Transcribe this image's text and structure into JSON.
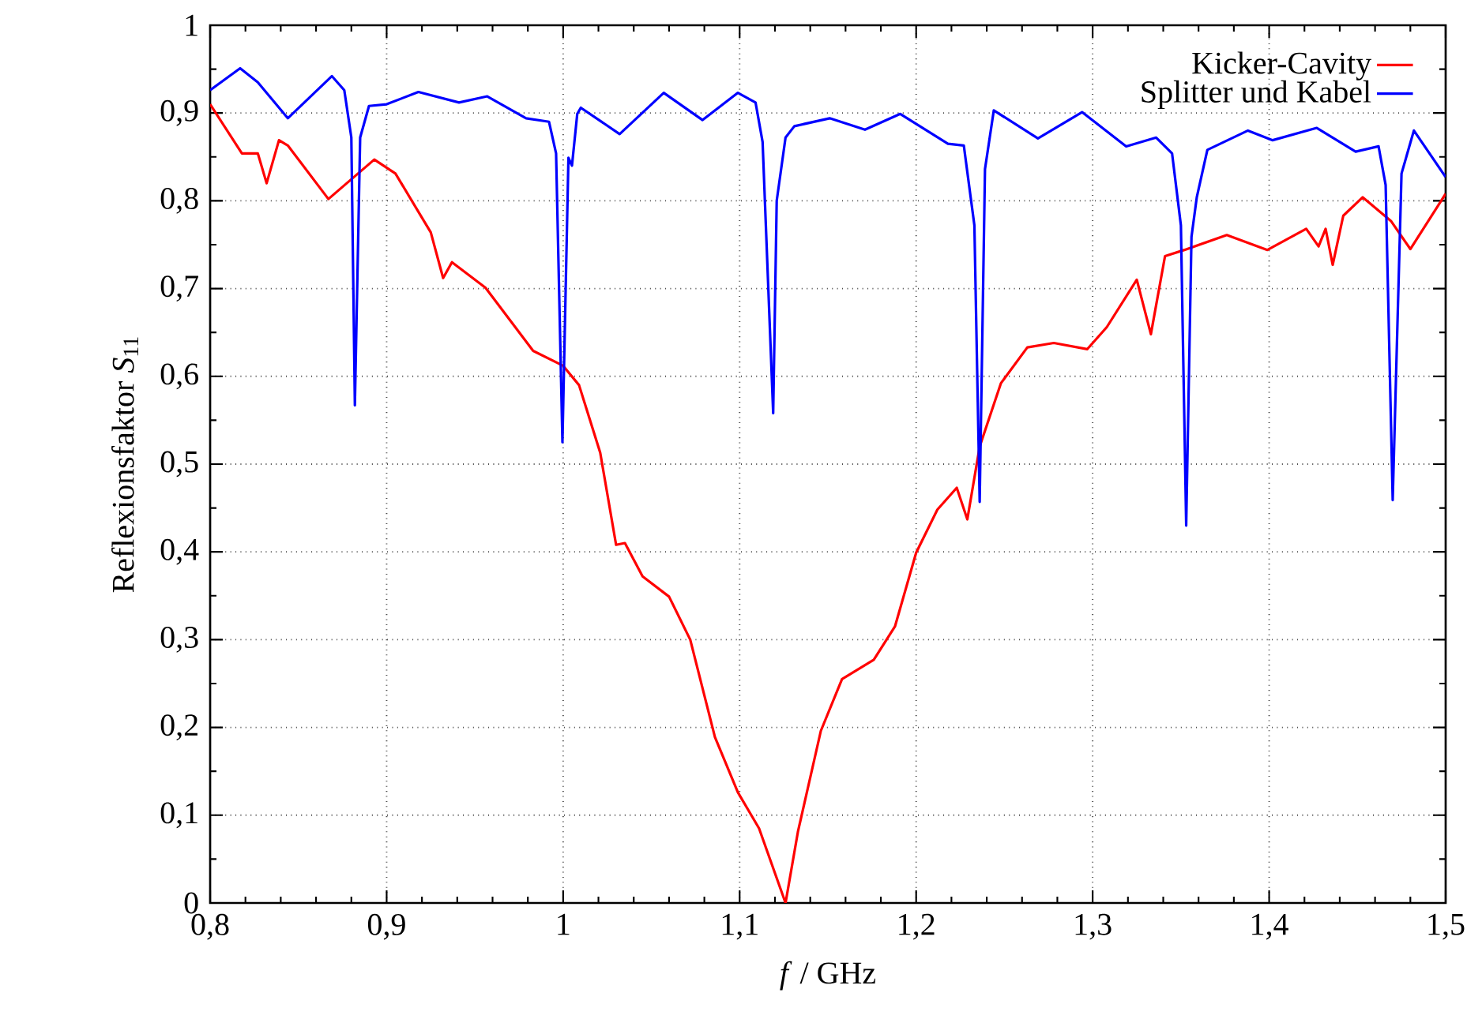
{
  "chart_data": {
    "type": "line",
    "xlabel": "*f* / GHz",
    "ylabel": "Reflexionsfaktor *S*$_{11}$",
    "xlim": [
      0.8,
      1.5
    ],
    "ylim": [
      0,
      1
    ],
    "xticks": [
      {
        "value": 0.8,
        "label": "0,8"
      },
      {
        "value": 0.9,
        "label": "0,9"
      },
      1,
      {
        "value": 1.1,
        "label": "1,1"
      },
      {
        "value": 1.2,
        "label": "1,2"
      },
      {
        "value": 1.3,
        "label": "1,3"
      },
      {
        "value": 1.4,
        "label": "1,4"
      },
      {
        "value": 1.5,
        "label": "1,5"
      }
    ],
    "yticks": [
      0,
      {
        "value": 0.1,
        "label": "0,1"
      },
      {
        "value": 0.2,
        "label": "0,2"
      },
      {
        "value": 0.3,
        "label": "0,3"
      },
      {
        "value": 0.4,
        "label": "0,4"
      },
      {
        "value": 0.5,
        "label": "0,5"
      },
      {
        "value": 0.6,
        "label": "0,6"
      },
      {
        "value": 0.7,
        "label": "0,7"
      },
      {
        "value": 0.8,
        "label": "0,8"
      },
      {
        "value": 0.9,
        "label": "0,9"
      },
      1
    ],
    "grid": true,
    "legend": "top right",
    "line_style": "solid",
    "series": [
      {
        "name": "Kicker-Cavity",
        "color": "#ff0000",
        "x": [
          0.8,
          0.818,
          0.827,
          0.832,
          0.839,
          0.844,
          0.867,
          0.893,
          0.905,
          0.925,
          0.932,
          0.937,
          0.956,
          0.983,
          1.0,
          1.009,
          1.021,
          1.03,
          1.035,
          1.045,
          1.06,
          1.072,
          1.086,
          1.099,
          1.111,
          1.126,
          1.133,
          1.146,
          1.158,
          1.176,
          1.188,
          1.2,
          1.212,
          1.223,
          1.229,
          1.236,
          1.248,
          1.263,
          1.278,
          1.297,
          1.308,
          1.325,
          1.333,
          1.341,
          1.352,
          1.376,
          1.399,
          1.421,
          1.428,
          1.432,
          1.436,
          1.442,
          1.453,
          1.469,
          1.48,
          1.5
        ],
        "values": [
          0.91,
          0.854,
          0.854,
          0.82,
          0.869,
          0.863,
          0.802,
          0.847,
          0.831,
          0.764,
          0.712,
          0.73,
          0.701,
          0.629,
          0.612,
          0.59,
          0.513,
          0.408,
          0.41,
          0.372,
          0.349,
          0.3,
          0.189,
          0.126,
          0.085,
          0.0,
          0.081,
          0.196,
          0.255,
          0.277,
          0.315,
          0.399,
          0.448,
          0.473,
          0.437,
          0.52,
          0.592,
          0.633,
          0.638,
          0.631,
          0.656,
          0.71,
          0.648,
          0.737,
          0.744,
          0.761,
          0.744,
          0.768,
          0.748,
          0.768,
          0.727,
          0.783,
          0.804,
          0.777,
          0.745,
          0.808
        ]
      },
      {
        "name": "Splitter und Kabel",
        "color": "#0000ff",
        "x": [
          0.8,
          0.817,
          0.827,
          0.844,
          0.869,
          0.876,
          0.88,
          0.882,
          0.885,
          0.89,
          0.9,
          0.918,
          0.941,
          0.957,
          0.979,
          0.992,
          0.996,
          0.9996,
          1.003,
          1.005,
          1.008,
          1.01,
          1.032,
          1.057,
          1.079,
          1.099,
          1.109,
          1.113,
          1.119,
          1.121,
          1.126,
          1.131,
          1.151,
          1.171,
          1.191,
          1.218,
          1.227,
          1.233,
          1.236,
          1.239,
          1.244,
          1.269,
          1.294,
          1.319,
          1.336,
          1.345,
          1.35,
          1.353,
          1.356,
          1.359,
          1.365,
          1.388,
          1.402,
          1.427,
          1.449,
          1.462,
          1.466,
          1.47,
          1.475,
          1.482,
          1.5
        ],
        "values": [
          0.926,
          0.951,
          0.935,
          0.894,
          0.942,
          0.926,
          0.872,
          0.567,
          0.872,
          0.908,
          0.91,
          0.924,
          0.912,
          0.919,
          0.894,
          0.89,
          0.854,
          0.525,
          0.849,
          0.84,
          0.899,
          0.906,
          0.876,
          0.923,
          0.892,
          0.923,
          0.912,
          0.867,
          0.558,
          0.8,
          0.872,
          0.885,
          0.894,
          0.881,
          0.899,
          0.865,
          0.863,
          0.772,
          0.457,
          0.836,
          0.903,
          0.871,
          0.901,
          0.862,
          0.872,
          0.854,
          0.772,
          0.43,
          0.759,
          0.804,
          0.858,
          0.88,
          0.869,
          0.883,
          0.856,
          0.862,
          0.818,
          0.459,
          0.831,
          0.88,
          0.827
        ]
      }
    ]
  }
}
